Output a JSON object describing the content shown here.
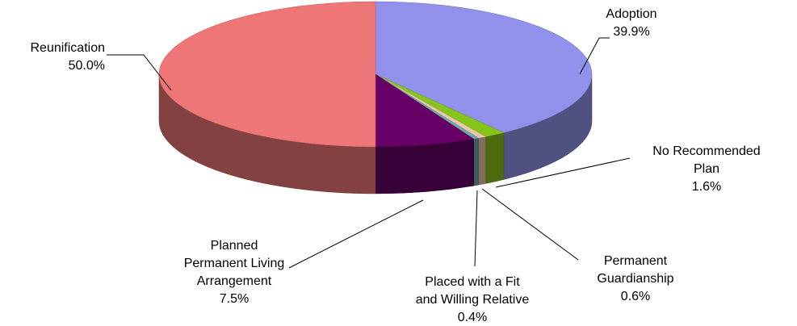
{
  "chart_data": {
    "type": "pie",
    "three_d": true,
    "categories": [
      "Adoption",
      "No Recommended Plan",
      "Permanent Guardianship",
      "Placed with a Fit and Willing Relative",
      "Planned Permanent Living Arrangement",
      "Reunification"
    ],
    "values": [
      39.9,
      1.6,
      0.6,
      0.4,
      7.5,
      50.0
    ],
    "value_labels": [
      "39.9%",
      "1.6%",
      "0.6%",
      "0.4%",
      "7.5%",
      "50.0%"
    ],
    "colors": [
      "#9191eb",
      "#86c41c",
      "#e8c8a8",
      "#72a8a8",
      "#660066",
      "#ee7676"
    ]
  }
}
